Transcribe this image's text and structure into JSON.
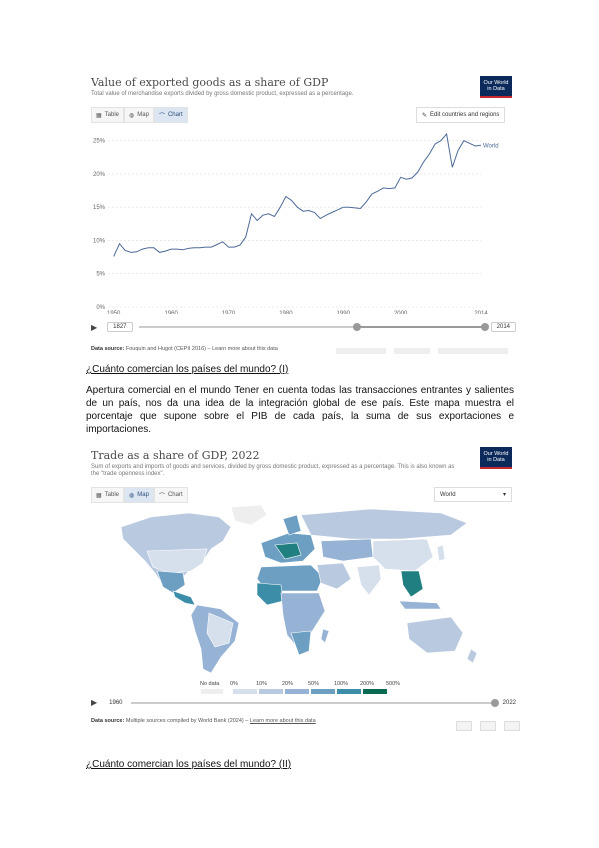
{
  "figure1": {
    "title": "Value of exported goods as a share of GDP",
    "subtitle": "Total value of merchandise exports divided by gross domestic product, expressed as a percentage.",
    "logo": [
      "Our World",
      "in Data"
    ],
    "tabs": [
      {
        "label": "Table",
        "icon": "table-icon"
      },
      {
        "label": "Map",
        "icon": "globe-icon"
      },
      {
        "label": "Chart",
        "icon": "chart-icon"
      }
    ],
    "active_tab": "Chart",
    "edit_button": "Edit countries and regions",
    "timeline": {
      "start": "1827",
      "end": "2014"
    },
    "source_label": "Data source:",
    "source_text": "Fouquin and Hugot (CEPII 2016) – Learn more about this data",
    "colors": {
      "line": "#4d6a99",
      "logo_bg": "#0b2a5b",
      "logo_accent": "#c8272d"
    }
  },
  "chart_data": {
    "type": "line",
    "title": "Value of exported goods as a share of GDP",
    "subtitle": "Total value of merchandise exports divided by gross domestic product, expressed as a percentage.",
    "xlabel": "",
    "ylabel": "",
    "x_ticks": [
      "1950",
      "1960",
      "1970",
      "1980",
      "1990",
      "2000",
      "2014"
    ],
    "y_ticks": [
      "0%",
      "5%",
      "10%",
      "15%",
      "20%",
      "25%"
    ],
    "xlim": [
      1949,
      2014
    ],
    "ylim": [
      0,
      26
    ],
    "grid": true,
    "series": [
      {
        "name": "World",
        "x": [
          1950,
          1951,
          1952,
          1953,
          1954,
          1955,
          1956,
          1957,
          1958,
          1959,
          1960,
          1961,
          1962,
          1963,
          1964,
          1965,
          1966,
          1967,
          1968,
          1969,
          1970,
          1971,
          1972,
          1973,
          1974,
          1975,
          1976,
          1977,
          1978,
          1979,
          1980,
          1981,
          1982,
          1983,
          1984,
          1985,
          1986,
          1987,
          1988,
          1989,
          1990,
          1991,
          1992,
          1993,
          1994,
          1995,
          1996,
          1997,
          1998,
          1999,
          2000,
          2001,
          2002,
          2003,
          2004,
          2005,
          2006,
          2007,
          2008,
          2009,
          2010,
          2011,
          2012,
          2013,
          2014
        ],
        "values": [
          7.6,
          9.5,
          8.5,
          8.2,
          8.3,
          8.7,
          8.9,
          8.9,
          8.2,
          8.4,
          8.7,
          8.7,
          8.6,
          8.8,
          8.9,
          8.9,
          9.0,
          9.0,
          9.4,
          9.8,
          9.0,
          9.0,
          9.3,
          10.5,
          14.0,
          13.0,
          13.8,
          14.0,
          13.6,
          15.0,
          16.6,
          16.0,
          15.0,
          14.4,
          14.5,
          14.2,
          13.3,
          13.8,
          14.2,
          14.6,
          15.0,
          15.0,
          14.9,
          14.8,
          15.8,
          17.0,
          17.4,
          17.9,
          17.8,
          17.9,
          19.5,
          19.2,
          19.4,
          20.3,
          21.8,
          23.0,
          24.5,
          25.0,
          26.0,
          21.0,
          23.5,
          25.0,
          24.6,
          24.2,
          24.3
        ]
      }
    ]
  },
  "heading1": "¿Cuánto comercian los países del mundo? (I)",
  "paragraph": "Apertura comercial en el mundo Tener en cuenta todas las transacciones entrantes y salientes de un país, nos da una idea de la integración global de ese país. Este mapa muestra el porcentaje que supone sobre el PIB de cada país, la suma de sus exportaciones e importaciones.",
  "figure2": {
    "title": "Trade as a share of GDP, 2022",
    "subtitle": "Sum of exports and imports of goods and services, divided by gross domestic product, expressed as a percentage. This is also known as the \"trade openness index\".",
    "logo": [
      "Our World",
      "in Data"
    ],
    "tabs": [
      {
        "label": "Table",
        "icon": "table-icon"
      },
      {
        "label": "Map",
        "icon": "globe-icon"
      },
      {
        "label": "Chart",
        "icon": "chart-icon"
      }
    ],
    "active_tab": "Map",
    "region_select": "World",
    "legend": {
      "labels": [
        "No data",
        "0%",
        "10%",
        "20%",
        "50%",
        "100%",
        "200%",
        "500%"
      ],
      "colors": [
        "#eeeeee",
        "#d6dfec",
        "#b8c9e0",
        "#96b2d4",
        "#6d9fc3",
        "#3c8ea8",
        "#207f80",
        "#0a6b52"
      ]
    },
    "timeline": {
      "start": "1960",
      "end": "2022"
    },
    "source_label": "Data source:",
    "source_text": "Multiple sources compiled by World Bank (2024)",
    "source_link": "Learn more about this data"
  },
  "heading2": "¿Cuánto comercian los países del mundo? (II)"
}
